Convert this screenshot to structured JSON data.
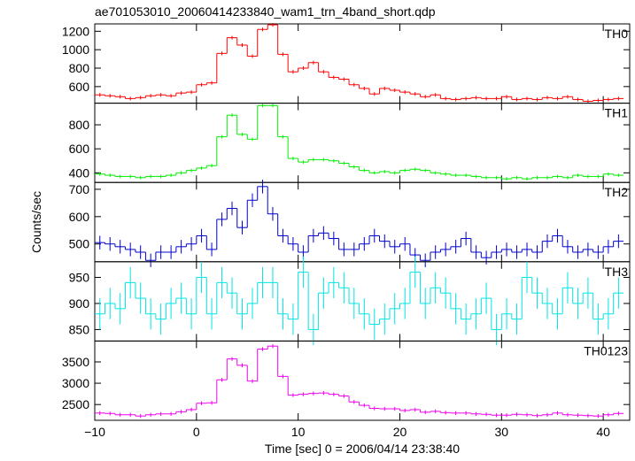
{
  "chart_data": {
    "type": "step-panels",
    "title": "ae701053010_20060414233840_wam1_trn_4band_short.qdp",
    "xlabel": "Time [sec] 0 = 2006/04/14 23:38:40",
    "ylabel": "Counts/sec",
    "xlim": [
      -10,
      42.6
    ],
    "xticks": [
      {
        "value": -10,
        "label": "−10"
      },
      0,
      10,
      20,
      30,
      40
    ],
    "x": [
      -9.5,
      -8.5,
      -7.5,
      -6.5,
      -5.5,
      -4.5,
      -3.5,
      -2.5,
      -1.5,
      -0.5,
      0.5,
      1.5,
      2.5,
      3.5,
      4.5,
      5.5,
      6.5,
      7.5,
      8.5,
      9.5,
      10.5,
      11.5,
      12.5,
      13.5,
      14.5,
      15.5,
      16.5,
      17.5,
      18.5,
      19.5,
      20.5,
      21.5,
      22.5,
      23.5,
      24.5,
      25.5,
      26.5,
      27.5,
      28.5,
      29.5,
      30.5,
      31.5,
      32.5,
      33.5,
      34.5,
      35.5,
      36.5,
      37.5,
      38.5,
      39.5,
      40.5,
      41.5
    ],
    "series": [
      {
        "name": "TH0",
        "color": "#ff0000",
        "ylim": [
          420,
          1280
        ],
        "yticks": [
          600,
          800,
          1000,
          1200
        ],
        "error": 20,
        "values": [
          510,
          500,
          490,
          470,
          480,
          500,
          510,
          500,
          530,
          540,
          620,
          640,
          960,
          1130,
          1050,
          930,
          1220,
          1270,
          950,
          760,
          800,
          860,
          760,
          700,
          680,
          620,
          580,
          520,
          580,
          560,
          540,
          520,
          490,
          510,
          470,
          460,
          470,
          480,
          470,
          470,
          490,
          460,
          470,
          460,
          480,
          470,
          490,
          460,
          440,
          450,
          460,
          470
        ]
      },
      {
        "name": "TH1",
        "color": "#00ee00",
        "ylim": [
          320,
          980
        ],
        "yticks": [
          400,
          600,
          800
        ],
        "error": 14,
        "values": [
          390,
          380,
          370,
          370,
          360,
          370,
          370,
          380,
          400,
          420,
          440,
          460,
          700,
          880,
          720,
          680,
          960,
          960,
          700,
          520,
          490,
          510,
          510,
          500,
          480,
          450,
          420,
          400,
          410,
          400,
          420,
          430,
          420,
          400,
          390,
          380,
          380,
          370,
          360,
          360,
          350,
          360,
          350,
          360,
          360,
          370,
          360,
          380,
          370,
          370,
          390,
          380
        ]
      },
      {
        "name": "TH2",
        "color": "#0000cc",
        "ylim": [
          435,
          725
        ],
        "yticks": [
          500,
          600,
          700
        ],
        "error": 25,
        "values": [
          505,
          500,
          490,
          480,
          470,
          440,
          470,
          470,
          490,
          500,
          530,
          480,
          590,
          630,
          560,
          660,
          710,
          610,
          530,
          500,
          470,
          530,
          540,
          520,
          480,
          480,
          500,
          530,
          510,
          490,
          500,
          460,
          440,
          470,
          480,
          490,
          520,
          470,
          450,
          470,
          480,
          470,
          480,
          470,
          510,
          530,
          490,
          470,
          480,
          470,
          490,
          510
        ]
      },
      {
        "name": "TH3",
        "color": "#00e5e5",
        "ylim": [
          828,
          980
        ],
        "yticks": [
          850,
          900,
          950
        ],
        "error": 30,
        "values": [
          880,
          900,
          890,
          940,
          910,
          880,
          870,
          900,
          910,
          880,
          950,
          880,
          940,
          920,
          880,
          900,
          940,
          940,
          880,
          870,
          960,
          850,
          920,
          940,
          930,
          900,
          880,
          860,
          870,
          890,
          900,
          960,
          900,
          930,
          920,
          890,
          870,
          880,
          910,
          850,
          880,
          870,
          950,
          920,
          900,
          880,
          930,
          900,
          920,
          870,
          880,
          920
        ]
      },
      {
        "name": "TH0123",
        "color": "#ee00ee",
        "ylim": [
          2130,
          3990
        ],
        "yticks": [
          2500,
          3000,
          3500
        ],
        "error": 45,
        "values": [
          2300,
          2290,
          2260,
          2260,
          2230,
          2260,
          2280,
          2280,
          2330,
          2380,
          2530,
          2540,
          3080,
          3570,
          3420,
          3050,
          3800,
          3870,
          3160,
          2720,
          2740,
          2760,
          2770,
          2740,
          2700,
          2560,
          2480,
          2410,
          2400,
          2400,
          2360,
          2380,
          2320,
          2340,
          2310,
          2300,
          2300,
          2280,
          2270,
          2250,
          2250,
          2270,
          2260,
          2240,
          2260,
          2300,
          2260,
          2250,
          2240,
          2230,
          2260,
          2290
        ]
      }
    ]
  }
}
